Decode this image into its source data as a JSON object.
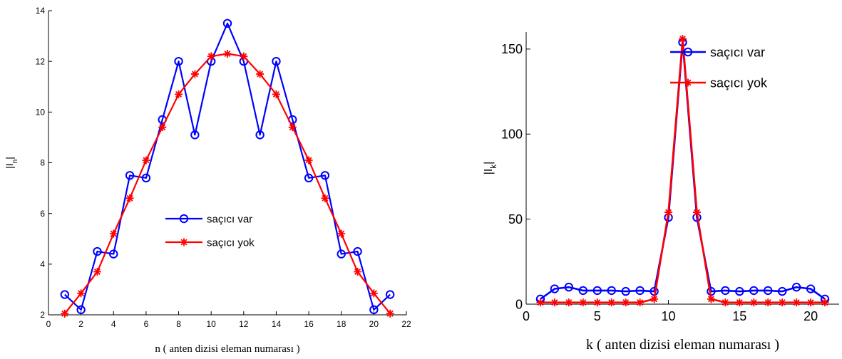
{
  "chart_data": [
    {
      "type": "line",
      "xlabel": "n ( anten dizisi eleman numarası )",
      "ylabel": "|I",
      "ylabel_sub": "n",
      "ylabel_end": "|",
      "xlim": [
        0,
        22
      ],
      "ylim": [
        2,
        14
      ],
      "xticks": [
        0,
        2,
        4,
        6,
        8,
        10,
        12,
        14,
        16,
        18,
        20,
        22
      ],
      "yticks": [
        2,
        4,
        6,
        8,
        10,
        12,
        14
      ],
      "legend_position": "center-right",
      "grid": false,
      "series": [
        {
          "name": "saçıcı var",
          "color": "#0000ff",
          "marker": "circle",
          "x": [
            1,
            2,
            3,
            4,
            5,
            6,
            7,
            8,
            9,
            10,
            11,
            12,
            13,
            14,
            15,
            16,
            17,
            18,
            19,
            20,
            21
          ],
          "y": [
            2.8,
            2.2,
            4.5,
            4.4,
            7.5,
            7.4,
            9.7,
            12.0,
            9.1,
            12.0,
            13.5,
            12.0,
            9.1,
            12.0,
            9.7,
            7.4,
            7.5,
            4.4,
            4.5,
            2.2,
            2.8
          ]
        },
        {
          "name": "saçıcı yok",
          "color": "#ff0000",
          "marker": "star",
          "x": [
            1,
            2,
            3,
            4,
            5,
            6,
            7,
            8,
            9,
            10,
            11,
            12,
            13,
            14,
            15,
            16,
            17,
            18,
            19,
            20,
            21
          ],
          "y": [
            2.05,
            2.85,
            3.7,
            5.2,
            6.6,
            8.1,
            9.4,
            10.7,
            11.5,
            12.2,
            12.3,
            12.2,
            11.5,
            10.7,
            9.4,
            8.1,
            6.6,
            5.2,
            3.7,
            2.85,
            2.05
          ]
        }
      ]
    },
    {
      "type": "line",
      "xlabel": "k ( anten dizisi eleman numarası )",
      "ylabel": "|I",
      "ylabel_sub": "k",
      "ylabel_end": "|",
      "xlim": [
        0,
        22
      ],
      "ylim": [
        0,
        160
      ],
      "xticks": [
        0,
        5,
        10,
        15,
        20
      ],
      "yticks": [
        0,
        50,
        100,
        150
      ],
      "legend_position": "top-right",
      "grid": false,
      "series": [
        {
          "name": "saçıcı var",
          "color": "#0000ff",
          "marker": "circle",
          "x": [
            1,
            2,
            3,
            4,
            5,
            6,
            7,
            8,
            9,
            10,
            11,
            12,
            13,
            14,
            15,
            16,
            17,
            18,
            19,
            20,
            21
          ],
          "y": [
            3,
            9,
            10,
            8,
            8,
            8,
            7.5,
            8,
            7.5,
            51,
            154,
            51,
            7.5,
            8,
            7.5,
            8,
            8,
            7.5,
            10,
            9,
            3
          ]
        },
        {
          "name": "saçıcı yok",
          "color": "#ff0000",
          "marker": "star",
          "x": [
            1,
            2,
            3,
            4,
            5,
            6,
            7,
            8,
            9,
            10,
            11,
            12,
            13,
            14,
            15,
            16,
            17,
            18,
            19,
            20,
            21
          ],
          "y": [
            1,
            1,
            1,
            1,
            1,
            1,
            1,
            1,
            3,
            54,
            156,
            54,
            3,
            1,
            1,
            1,
            1,
            1,
            1,
            1,
            1
          ]
        }
      ]
    }
  ]
}
